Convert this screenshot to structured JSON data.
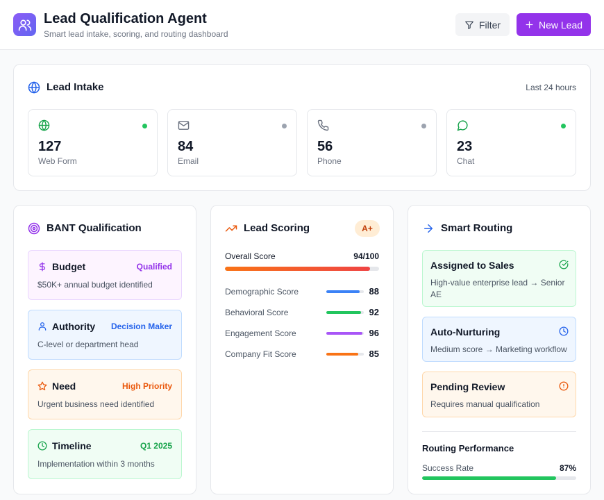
{
  "header": {
    "title": "Lead Qualification Agent",
    "subtitle": "Smart lead intake, scoring, and routing dashboard",
    "filter_label": "Filter",
    "new_lead_label": "New Lead"
  },
  "intake": {
    "title": "Lead Intake",
    "period": "Last 24 hours",
    "channels": [
      {
        "count": "127",
        "label": "Web Form",
        "icon": "globe-icon",
        "status_color": "#22c55e"
      },
      {
        "count": "84",
        "label": "Email",
        "icon": "mail-icon",
        "status_color": "#9ca3af"
      },
      {
        "count": "56",
        "label": "Phone",
        "icon": "phone-icon",
        "status_color": "#9ca3af"
      },
      {
        "count": "23",
        "label": "Chat",
        "icon": "chat-icon",
        "status_color": "#22c55e"
      }
    ]
  },
  "bant": {
    "title": "BANT Qualification",
    "items": [
      {
        "name": "Budget",
        "tag": "Qualified",
        "desc": "$50K+ annual budget identified",
        "icon": "dollar-icon",
        "bg": "#fdf4ff",
        "border": "#e9d5ff",
        "accent": "#9333ea"
      },
      {
        "name": "Authority",
        "tag": "Decision Maker",
        "desc": "C-level or department head",
        "icon": "user-icon",
        "bg": "#eff6ff",
        "border": "#bfdbfe",
        "accent": "#2563eb"
      },
      {
        "name": "Need",
        "tag": "High Priority",
        "desc": "Urgent business need identified",
        "icon": "star-icon",
        "bg": "#fff7ed",
        "border": "#fed7aa",
        "accent": "#ea580c"
      },
      {
        "name": "Timeline",
        "tag": "Q1 2025",
        "desc": "Implementation within 3 months",
        "icon": "clock-icon",
        "bg": "#f0fdf4",
        "border": "#bbf7d0",
        "accent": "#16a34a"
      }
    ]
  },
  "scoring": {
    "title": "Lead Scoring",
    "grade": "A+",
    "overall_label": "Overall Score",
    "overall_value": "94/100",
    "overall_fraction": 0.94,
    "rows": [
      {
        "label": "Demographic Score",
        "value": "88",
        "fraction": 0.88,
        "color": "#3b82f6"
      },
      {
        "label": "Behavioral Score",
        "value": "92",
        "fraction": 0.92,
        "color": "#22c55e"
      },
      {
        "label": "Engagement Score",
        "value": "96",
        "fraction": 0.96,
        "color": "#a855f7"
      },
      {
        "label": "Company Fit Score",
        "value": "85",
        "fraction": 0.85,
        "color": "#f97316"
      }
    ]
  },
  "routing": {
    "title": "Smart Routing",
    "items": [
      {
        "name": "Assigned to Sales",
        "desc": "High-value enterprise lead → Senior AE",
        "icon": "check-circle-icon",
        "bg": "#f0fdf4",
        "border": "#bbf7d0",
        "accent": "#16a34a"
      },
      {
        "name": "Auto-Nurturing",
        "desc": "Medium score → Marketing workflow",
        "icon": "clock-icon",
        "bg": "#eff6ff",
        "border": "#bfdbfe",
        "accent": "#2563eb"
      },
      {
        "name": "Pending Review",
        "desc": "Requires manual qualification",
        "icon": "alert-circle-icon",
        "bg": "#fff7ed",
        "border": "#fed7aa",
        "accent": "#ea580c"
      }
    ],
    "performance_title": "Routing Performance",
    "success_label": "Success Rate",
    "success_value": "87%",
    "success_fraction": 0.87
  }
}
